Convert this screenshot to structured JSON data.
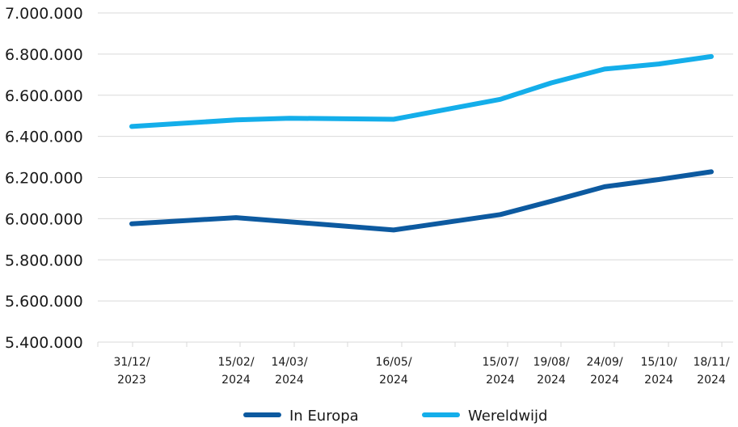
{
  "chart_data": {
    "type": "line",
    "title": "",
    "xlabel": "",
    "ylabel": "",
    "ylim": [
      5400000,
      7000000
    ],
    "y_ticks": [
      "7.000.000",
      "6.800.000",
      "6.600.000",
      "6.400.000",
      "6.200.000",
      "6.000.000",
      "5.800.000",
      "5.600.000",
      "5.400.000"
    ],
    "y_tick_values": [
      7000000,
      6800000,
      6600000,
      6400000,
      6200000,
      6000000,
      5800000,
      5600000,
      5400000
    ],
    "x": [
      "2023-12-31",
      "2024-02-15",
      "2024-03-14",
      "2024-05-16",
      "2024-07-15",
      "2024-08-19",
      "2024-09-24",
      "2024-10-15",
      "2024-11-18"
    ],
    "x_tick_labels": [
      [
        "31/12/",
        "2023"
      ],
      [
        "15/02/",
        "2024"
      ],
      [
        "14/03/",
        "2024"
      ],
      [
        "16/05/",
        "2024"
      ],
      [
        "15/07/",
        "2024"
      ],
      [
        "19/08/",
        "2024"
      ],
      [
        "24/09/",
        "2024"
      ],
      [
        "15/10/",
        "2024"
      ],
      [
        "18/11/",
        "2024"
      ]
    ],
    "series": [
      {
        "name": "In Europa",
        "color": "#0d5aa0",
        "values": [
          5975000,
          6005000,
          5985000,
          5945000,
          6020000,
          6085000,
          6155000,
          6190000,
          6228000
        ]
      },
      {
        "name": "Wereldwijd",
        "color": "#14aeea",
        "values": [
          6448000,
          6480000,
          6488000,
          6483000,
          6580000,
          6660000,
          6727000,
          6752000,
          6788000
        ]
      }
    ],
    "grid": true,
    "legend_position": "bottom-center"
  }
}
